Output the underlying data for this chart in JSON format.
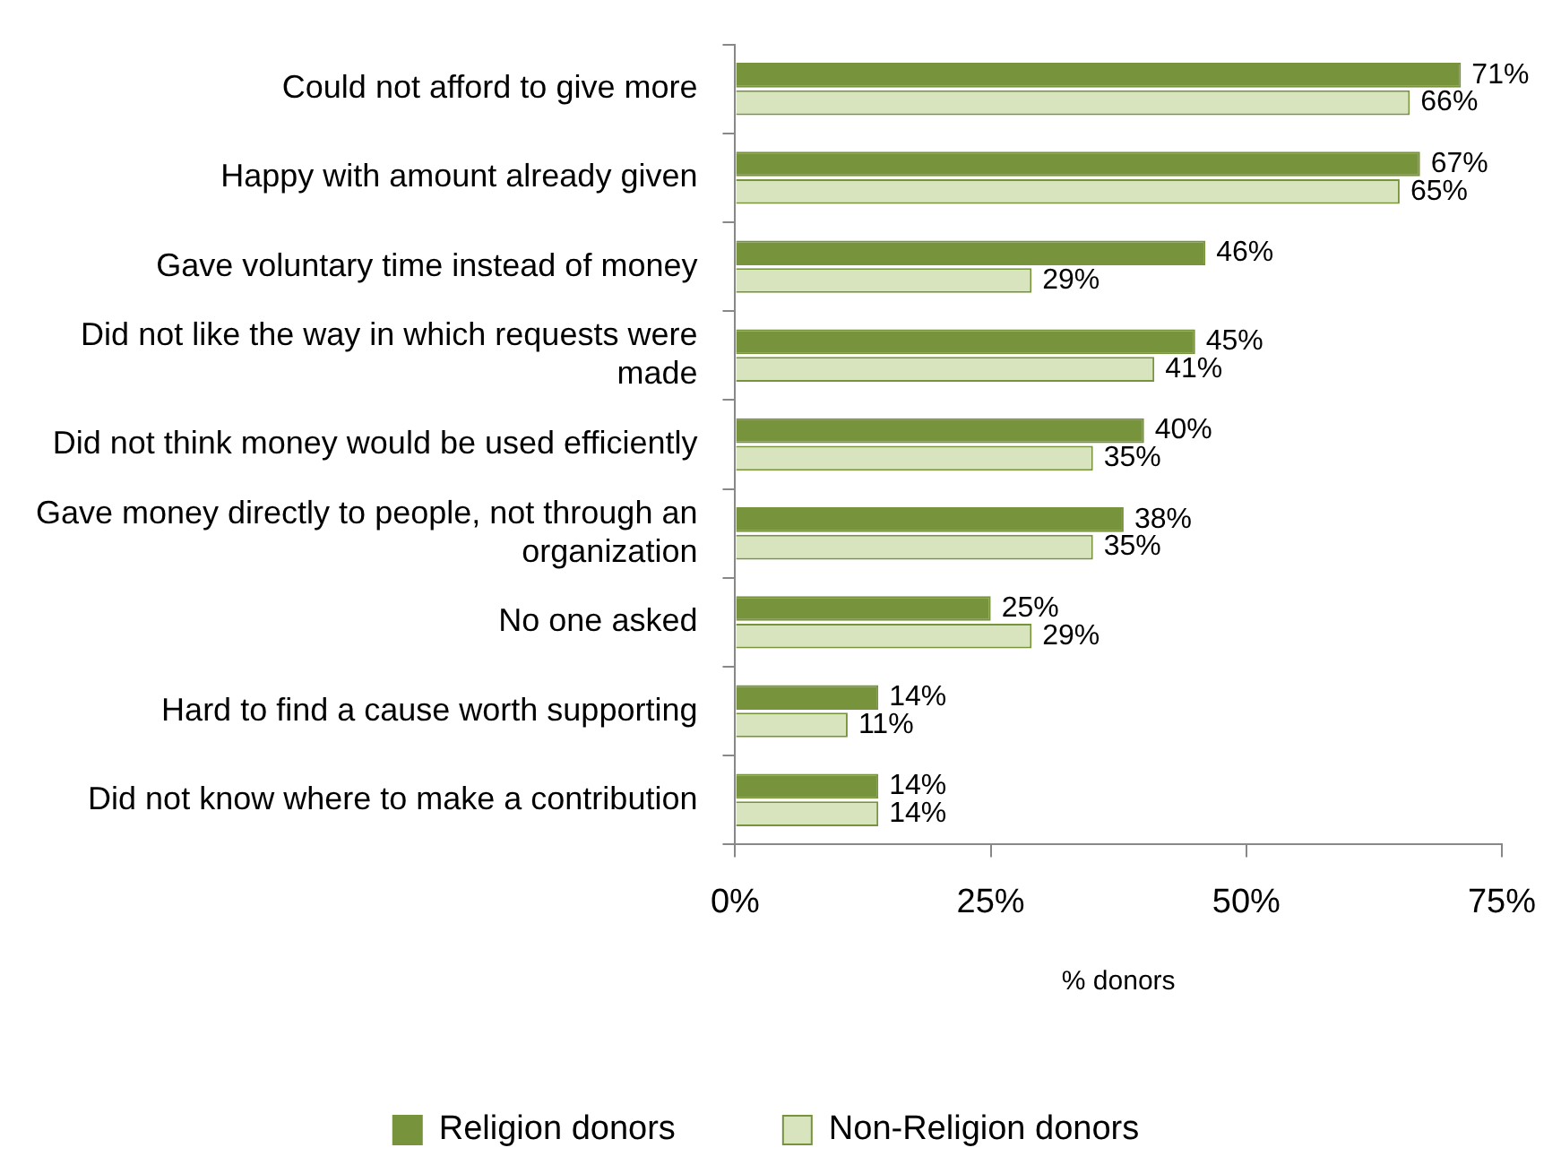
{
  "chart_data": {
    "type": "bar",
    "orientation": "horizontal",
    "xlabel": "% donors",
    "categories": [
      "Could not afford to give more",
      "Happy with amount already given",
      "Gave voluntary time instead of money",
      "Did not like the way in which requests were made",
      "Did not think money would be used efficiently",
      "Gave money directly to people, not through an organization",
      "No one asked",
      "Hard to find a cause worth supporting",
      "Did not know where to make a contribution"
    ],
    "series": [
      {
        "name": "Religion donors",
        "color": "#77933c",
        "values": [
          71,
          67,
          46,
          45,
          40,
          38,
          25,
          14,
          14
        ],
        "value_labels": [
          "71%",
          "67%",
          "46%",
          "45%",
          "40%",
          "38%",
          "25%",
          "14%",
          "14%"
        ]
      },
      {
        "name": "Non-Religion donors",
        "color": "#d7e4bd",
        "values": [
          66,
          65,
          29,
          41,
          35,
          35,
          29,
          11,
          14
        ],
        "value_labels": [
          "66%",
          "65%",
          "29%",
          "41%",
          "35%",
          "35%",
          "29%",
          "11%",
          "14%"
        ]
      }
    ],
    "xlim": [
      0,
      75
    ],
    "xticks": [
      {
        "value": 0,
        "label": "0%"
      },
      {
        "value": 25,
        "label": "25%"
      },
      {
        "value": 50,
        "label": "50%"
      },
      {
        "value": 75,
        "label": "75%"
      }
    ],
    "legend": "bottom"
  }
}
